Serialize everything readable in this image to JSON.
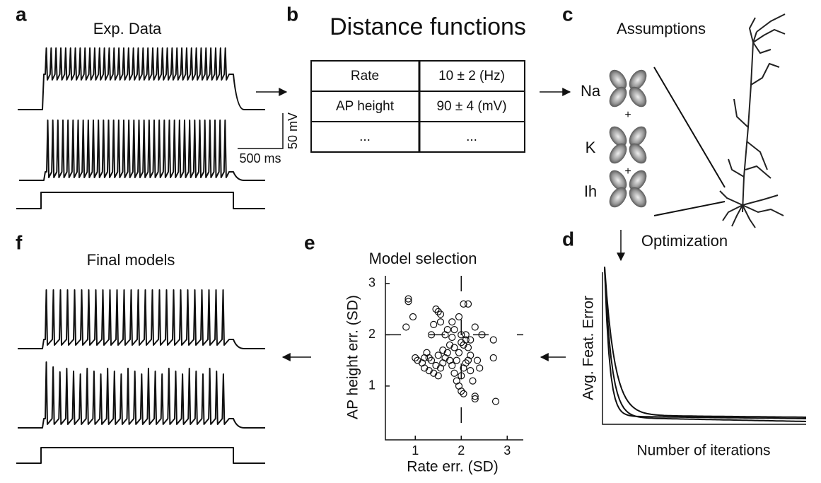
{
  "panels": {
    "a": {
      "label": "a",
      "title": "Exp. Data",
      "scale_bar": {
        "voltage": "50 mV",
        "time": "500 ms"
      }
    },
    "b": {
      "label": "b",
      "title": "Distance functions",
      "table": {
        "rows": [
          [
            "Rate",
            "10 ± 2 (Hz)"
          ],
          [
            "AP height",
            "90 ± 4 (mV)"
          ],
          [
            "...",
            "..."
          ]
        ]
      }
    },
    "c": {
      "label": "c",
      "title": "Assumptions",
      "channels": [
        "Na",
        "K",
        "Ih"
      ],
      "plus": "+"
    },
    "d": {
      "label": "d",
      "title": "Optimization",
      "ylabel": "Avg. Feat. Error",
      "xlabel": "Number of iterations"
    },
    "e": {
      "label": "e"
    },
    "f": {
      "label": "f",
      "title": "Final models"
    }
  },
  "chart_data": {
    "type": "scatter",
    "title": "Model selection",
    "xlabel": "Rate err. (SD)",
    "ylabel": "AP height err. (SD)",
    "x": [
      0.85,
      0.85,
      0.8,
      0.95,
      1.45,
      1.5,
      1.55,
      1.55,
      1.4,
      1.35,
      1.25,
      1.0,
      1.05,
      1.15,
      1.2,
      1.3,
      1.4,
      1.5,
      1.55,
      1.6,
      1.65,
      1.7,
      1.75,
      1.8,
      1.85,
      1.8,
      1.7,
      1.65,
      1.75,
      1.8,
      1.85,
      1.9,
      1.95,
      2.0,
      2.05,
      2.0,
      2.05,
      2.1,
      2.15,
      2.2,
      2.05,
      2.0,
      2.1,
      2.15,
      2.2,
      2.25,
      2.3,
      2.3,
      2.35,
      2.4,
      2.45,
      2.05,
      2.15,
      2.3,
      2.7,
      2.7,
      2.75,
      1.9,
      1.95,
      1.6,
      1.5,
      1.45,
      1.35,
      1.3,
      1.2,
      1.95,
      2.0,
      2.1,
      1.85,
      2.2
    ],
    "y": [
      2.7,
      2.65,
      2.15,
      2.35,
      2.5,
      2.45,
      2.4,
      2.25,
      2.2,
      2.0,
      1.65,
      1.55,
      1.5,
      1.45,
      1.35,
      1.3,
      1.25,
      1.2,
      1.35,
      1.45,
      1.55,
      1.65,
      1.8,
      1.95,
      2.1,
      2.25,
      2.1,
      2.0,
      1.5,
      1.4,
      1.25,
      1.1,
      1.0,
      0.9,
      0.85,
      1.2,
      1.35,
      1.45,
      1.5,
      1.6,
      1.8,
      1.85,
      2.0,
      1.75,
      1.3,
      1.1,
      0.75,
      0.8,
      1.5,
      1.35,
      2.0,
      2.6,
      2.6,
      2.15,
      1.9,
      1.55,
      0.7,
      1.5,
      1.65,
      1.7,
      1.6,
      1.4,
      1.5,
      1.55,
      1.55,
      2.35,
      2.0,
      1.9,
      1.75,
      1.9
    ],
    "xlim": [
      0.35,
      3.35
    ],
    "ylim": [
      -0.05,
      3.15
    ],
    "xticks": [
      1,
      2,
      3
    ],
    "yticks": [
      1,
      2,
      3
    ],
    "xline": 2,
    "yline": 2
  }
}
